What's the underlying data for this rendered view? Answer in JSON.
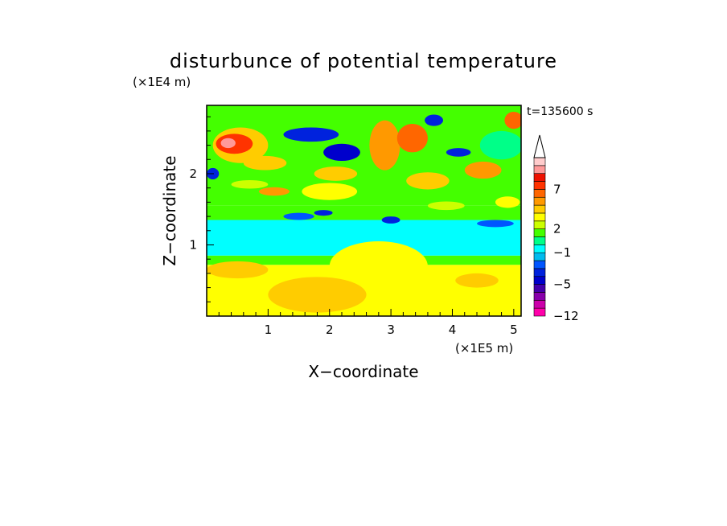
{
  "chart_data": {
    "type": "heatmap",
    "title": "disturbunce of potential temperature",
    "time_label": "t=135600 s",
    "xlabel": "X−coordinate",
    "ylabel": "Z−coordinate",
    "x_unit": "(×1E5 m)",
    "y_unit": "(×1E4 m)",
    "xlim": [
      0,
      5.12
    ],
    "ylim": [
      0,
      2.96
    ],
    "x_ticks": [
      1,
      2,
      3,
      4,
      5
    ],
    "x_tick_labels": [
      "1",
      "2",
      "3",
      "4",
      "5"
    ],
    "y_ticks": [
      1,
      2
    ],
    "y_tick_labels": [
      "1",
      "2"
    ],
    "colorbar": {
      "levels": [
        -12,
        -10,
        -8,
        -6,
        -5,
        -4,
        -3,
        -2,
        -1,
        0,
        1,
        2,
        3,
        4,
        5,
        6,
        7,
        8,
        9,
        10
      ],
      "colors": [
        "#ff00aa",
        "#cc00aa",
        "#8800aa",
        "#4400aa",
        "#0000cc",
        "#0022dd",
        "#0055ff",
        "#00bbee",
        "#00ffff",
        "#00ff88",
        "#44ff00",
        "#ccff00",
        "#ffff00",
        "#ffcc00",
        "#ff9900",
        "#ff6600",
        "#ff3300",
        "#ee1100",
        "#ff9999",
        "#ffcccc"
      ],
      "labels": [
        "−12",
        "−5",
        "−1",
        "2",
        "7"
      ],
      "label_values": [
        -12,
        -5,
        -1,
        2,
        7
      ],
      "extend_max": true
    },
    "field": {
      "layers": [
        {
          "z": [
            0.0,
            0.72
          ],
          "class": 12
        },
        {
          "z": [
            0.72,
            0.85
          ],
          "class": 10
        },
        {
          "z": [
            0.85,
            1.35
          ],
          "class": 8
        },
        {
          "z": [
            1.35,
            1.55
          ],
          "class": 10
        },
        {
          "z": [
            1.55,
            2.96
          ],
          "class": 10
        }
      ],
      "patches": [
        {
          "x": 0.55,
          "z": 2.4,
          "rx": 0.45,
          "rz": 0.25,
          "class": 13
        },
        {
          "x": 0.45,
          "z": 2.42,
          "rx": 0.3,
          "rz": 0.14,
          "class": 16
        },
        {
          "x": 0.35,
          "z": 2.43,
          "rx": 0.12,
          "rz": 0.07,
          "class": 18
        },
        {
          "x": 0.95,
          "z": 2.15,
          "rx": 0.35,
          "rz": 0.1,
          "class": 13
        },
        {
          "x": 1.7,
          "z": 2.55,
          "rx": 0.45,
          "rz": 0.1,
          "class": 5
        },
        {
          "x": 2.2,
          "z": 2.3,
          "rx": 0.3,
          "rz": 0.12,
          "class": 4
        },
        {
          "x": 2.1,
          "z": 2.0,
          "rx": 0.35,
          "rz": 0.1,
          "class": 13
        },
        {
          "x": 2.0,
          "z": 1.75,
          "rx": 0.45,
          "rz": 0.12,
          "class": 12
        },
        {
          "x": 2.9,
          "z": 2.4,
          "rx": 0.25,
          "rz": 0.35,
          "class": 14
        },
        {
          "x": 3.35,
          "z": 2.5,
          "rx": 0.25,
          "rz": 0.2,
          "class": 15
        },
        {
          "x": 3.6,
          "z": 1.9,
          "rx": 0.35,
          "rz": 0.12,
          "class": 13
        },
        {
          "x": 4.5,
          "z": 2.05,
          "rx": 0.3,
          "rz": 0.12,
          "class": 14
        },
        {
          "x": 4.8,
          "z": 2.4,
          "rx": 0.35,
          "rz": 0.2,
          "class": 9
        },
        {
          "x": 5.0,
          "z": 2.75,
          "rx": 0.15,
          "rz": 0.12,
          "class": 15
        },
        {
          "x": 3.7,
          "z": 2.75,
          "rx": 0.15,
          "rz": 0.08,
          "class": 5
        },
        {
          "x": 4.1,
          "z": 2.3,
          "rx": 0.2,
          "rz": 0.06,
          "class": 5
        },
        {
          "x": 0.1,
          "z": 2.0,
          "rx": 0.1,
          "rz": 0.08,
          "class": 5
        },
        {
          "x": 3.0,
          "z": 1.35,
          "rx": 0.15,
          "rz": 0.05,
          "class": 5
        },
        {
          "x": 4.7,
          "z": 1.3,
          "rx": 0.3,
          "rz": 0.05,
          "class": 6
        },
        {
          "x": 2.8,
          "z": 0.7,
          "rx": 0.8,
          "rz": 0.35,
          "class": 12
        },
        {
          "x": 1.8,
          "z": 0.3,
          "rx": 0.8,
          "rz": 0.25,
          "class": 13
        },
        {
          "x": 0.5,
          "z": 0.65,
          "rx": 0.5,
          "rz": 0.12,
          "class": 13
        },
        {
          "x": 4.4,
          "z": 0.5,
          "rx": 0.35,
          "rz": 0.1,
          "class": 13
        },
        {
          "x": 1.5,
          "z": 1.4,
          "rx": 0.25,
          "rz": 0.05,
          "class": 6
        },
        {
          "x": 1.9,
          "z": 1.45,
          "rx": 0.15,
          "rz": 0.04,
          "class": 5
        },
        {
          "x": 1.1,
          "z": 1.75,
          "rx": 0.25,
          "rz": 0.06,
          "class": 14
        },
        {
          "x": 0.7,
          "z": 1.85,
          "rx": 0.3,
          "rz": 0.06,
          "class": 11
        },
        {
          "x": 4.9,
          "z": 1.6,
          "rx": 0.2,
          "rz": 0.08,
          "class": 12
        },
        {
          "x": 3.9,
          "z": 1.55,
          "rx": 0.3,
          "rz": 0.06,
          "class": 11
        }
      ]
    }
  }
}
